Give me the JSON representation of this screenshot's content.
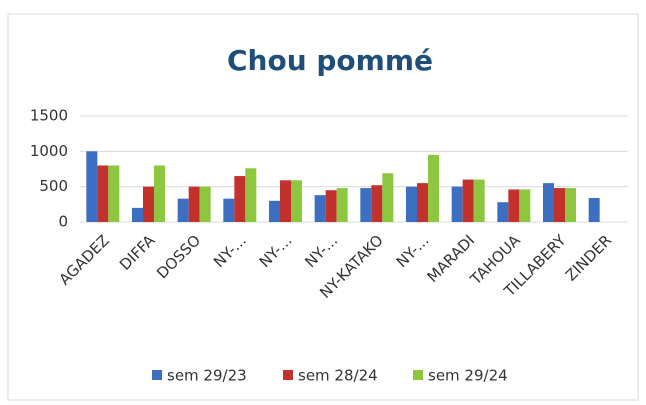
{
  "chart_data": {
    "type": "bar",
    "title": "Chou pommé",
    "categories": [
      "AGADEZ",
      "DIFFA",
      "DOSSO",
      "NY-...",
      "NY-...",
      "NY-...",
      "NY-KATAKO",
      "NY-...",
      "MARADI",
      "TAHOUA",
      "TILLABERY",
      "ZINDER"
    ],
    "series": [
      {
        "name": "sem 29/23",
        "color": "#3c6fc2",
        "values": [
          1000,
          200,
          330,
          330,
          300,
          380,
          480,
          500,
          500,
          280,
          550,
          340
        ]
      },
      {
        "name": "sem 28/24",
        "color": "#c3312c",
        "values": [
          800,
          500,
          500,
          650,
          590,
          450,
          520,
          550,
          600,
          460,
          480,
          null
        ]
      },
      {
        "name": "sem 29/24",
        "color": "#8dc63f",
        "values": [
          800,
          800,
          500,
          760,
          590,
          480,
          690,
          950,
          600,
          460,
          480,
          null
        ]
      }
    ],
    "ylim": [
      0,
      1500
    ],
    "yticks": [
      0,
      500,
      1000,
      1500
    ],
    "grid": true,
    "legend": "bottom"
  }
}
